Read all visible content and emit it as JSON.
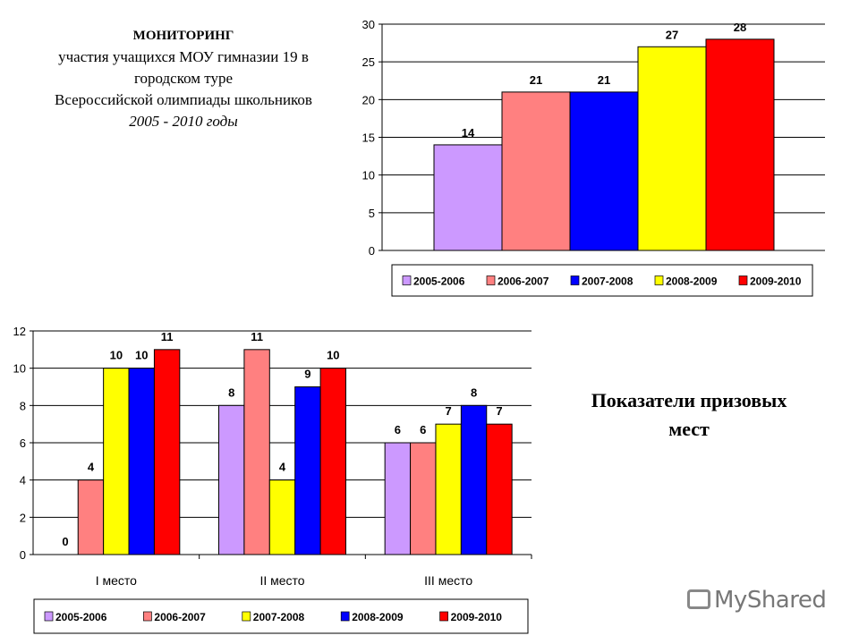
{
  "title": {
    "line1": "МОНИТОРИНГ",
    "line2": "участия учащихся МОУ гимназии 19 в",
    "line3": "городском туре",
    "line4": "Всероссийской олимпиады школьников",
    "line5": "2005 - 2010 годы"
  },
  "side_text": {
    "line1": "Показатели призовых",
    "line2": "мест"
  },
  "watermark": "MyShared",
  "chart_data": [
    {
      "type": "bar",
      "title": "",
      "xlabel": "",
      "ylabel": "",
      "ylim": [
        0,
        30
      ],
      "yticks": [
        0,
        5,
        10,
        15,
        20,
        25,
        30
      ],
      "grid": true,
      "legend": "bottom",
      "series": [
        {
          "name": "2005-2006",
          "values": [
            14
          ],
          "color": "#CC99FF"
        },
        {
          "name": "2006-2007",
          "values": [
            21
          ],
          "color": "#FF8080"
        },
        {
          "name": "2007-2008",
          "values": [
            21
          ],
          "color": "#0000FF"
        },
        {
          "name": "2008-2009",
          "values": [
            27
          ],
          "color": "#FFFF00"
        },
        {
          "name": "2009-2010",
          "values": [
            28
          ],
          "color": "#FF0000"
        }
      ]
    },
    {
      "type": "bar",
      "title": "",
      "xlabel": "",
      "ylabel": "",
      "ylim": [
        0,
        12
      ],
      "yticks": [
        0,
        2,
        4,
        6,
        8,
        10,
        12
      ],
      "grid": true,
      "legend": "bottom",
      "categories": [
        "I место",
        "II место",
        "III место"
      ],
      "series": [
        {
          "name": "2005-2006",
          "values": [
            0,
            8,
            6
          ],
          "color": "#CC99FF"
        },
        {
          "name": "2006-2007",
          "values": [
            4,
            11,
            6
          ],
          "color": "#FF8080"
        },
        {
          "name": "2007-2008",
          "values": [
            10,
            4,
            7
          ],
          "color": "#FFFF00"
        },
        {
          "name": "2008-2009",
          "values": [
            10,
            9,
            8
          ],
          "color": "#0000FF"
        },
        {
          "name": "2009-2010",
          "values": [
            11,
            10,
            7
          ],
          "color": "#FF0000"
        }
      ]
    }
  ]
}
